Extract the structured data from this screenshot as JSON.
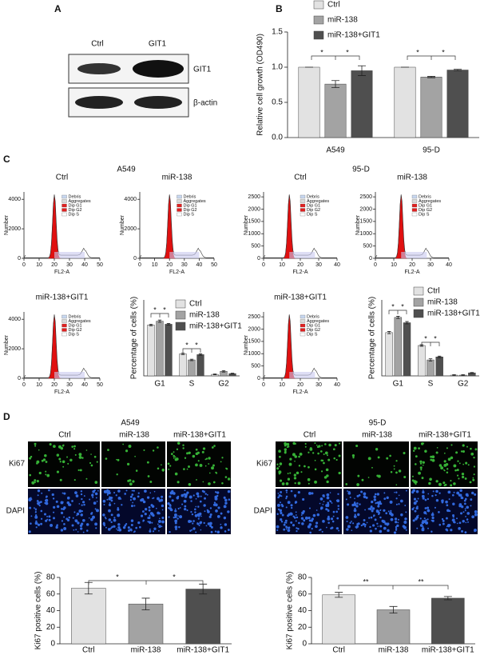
{
  "panels": [
    "A",
    "B",
    "C",
    "D"
  ],
  "blot": {
    "columns": [
      "Ctrl",
      "GIT1"
    ],
    "rows": [
      "GIT1",
      "β-actin"
    ]
  },
  "flow": [
    {
      "title": "A549",
      "plots": [
        "Ctrl",
        "miR-138",
        "miR-138+GIT1"
      ],
      "xlabel": "FL2-A",
      "ylabel": "Number",
      "xlim": [
        0,
        50
      ],
      "xticks": [
        0,
        10,
        20,
        30,
        40,
        50
      ],
      "ylim": [
        0,
        4500
      ],
      "yticks": [
        0,
        2000,
        4000
      ],
      "legend": [
        "Debris",
        "Aggregates",
        "Dip G1",
        "Dip G2",
        "Dip S"
      ]
    },
    {
      "title": "95-D",
      "plots": [
        "Ctrl",
        "miR-138",
        "miR-138+GIT1"
      ],
      "xlabel": "FL2-A",
      "ylabel": "Number",
      "xlim": [
        0,
        40
      ],
      "xticks": [
        0,
        10,
        20,
        30,
        40
      ],
      "ylim": [
        0,
        2700
      ],
      "yticks": [
        0,
        500,
        1000,
        1500,
        2000,
        2500
      ],
      "legend": [
        "Debris",
        "Aggregates",
        "Dip G1",
        "Dip G2",
        "Dip S"
      ]
    }
  ],
  "microscopy": [
    {
      "title": "A549",
      "columns": [
        "Ctrl",
        "miR-138",
        "miR-138+GIT1"
      ],
      "rows": [
        "Ki67",
        "DAPI"
      ]
    },
    {
      "title": "95-D",
      "columns": [
        "Ctrl",
        "miR-138",
        "miR-138+GIT1"
      ],
      "rows": [
        "Ki67",
        "DAPI"
      ]
    }
  ],
  "chart_data": [
    {
      "type": "bar",
      "ylabel": "Relative cell growth (OD490)",
      "categories": [
        "A549",
        "95-D"
      ],
      "series": [
        {
          "name": "Ctrl",
          "color": "#e2e2e2",
          "values": [
            1.0,
            1.0
          ],
          "errors": [
            0,
            0
          ]
        },
        {
          "name": "miR-138",
          "color": "#a3a3a3",
          "values": [
            0.76,
            0.86
          ],
          "errors": [
            0.05,
            0.01
          ]
        },
        {
          "name": "miR-138+GIT1",
          "color": "#4f4f4f",
          "values": [
            0.95,
            0.96
          ],
          "errors": [
            0.07,
            0.01
          ]
        }
      ],
      "ylim": [
        0,
        1.5
      ],
      "yticks": [
        {
          "value": 0,
          "label": "0.0"
        },
        {
          "value": 0.5,
          "label": "0.5"
        },
        {
          "value": 1,
          "label": "1.0"
        },
        {
          "value": 1.5,
          "label": "1.5"
        }
      ],
      "annotations": [
        "*",
        "*",
        "*",
        "*"
      ]
    },
    {
      "type": "bar",
      "ylabel": "Percentage of cells (%)",
      "categories": [
        "G1",
        "S",
        "G2"
      ],
      "series": [
        {
          "name": "Ctrl",
          "color": "#e2e2e2",
          "values": [
            67,
            29,
            2
          ],
          "errors": [
            1,
            1,
            0.5
          ]
        },
        {
          "name": "miR-138",
          "color": "#a3a3a3",
          "values": [
            72,
            21,
            6
          ],
          "errors": [
            1.5,
            1,
            1
          ]
        },
        {
          "name": "miR-138+GIT1",
          "color": "#4f4f4f",
          "values": [
            68,
            28,
            3
          ],
          "errors": [
            1,
            1,
            0.5
          ]
        }
      ],
      "ylim": [
        0,
        100
      ],
      "annotations": [
        "*",
        "*",
        "*",
        "*"
      ]
    },
    {
      "type": "bar",
      "ylabel": "Percentage of cells (%)",
      "categories": [
        "G1",
        "S",
        "G2"
      ],
      "series": [
        {
          "name": "Ctrl",
          "color": "#e2e2e2",
          "values": [
            57,
            40,
            1
          ],
          "errors": [
            1.5,
            1,
            0.5
          ]
        },
        {
          "name": "miR-138",
          "color": "#a3a3a3",
          "values": [
            77,
            21,
            1
          ],
          "errors": [
            1.5,
            1.5,
            0.5
          ]
        },
        {
          "name": "miR-138+GIT1",
          "color": "#4f4f4f",
          "values": [
            70,
            25,
            4
          ],
          "errors": [
            1.5,
            1,
            0.5
          ]
        }
      ],
      "ylim": [
        0,
        100
      ],
      "annotations": [
        "*",
        "*",
        "*",
        "*"
      ]
    },
    {
      "type": "bar",
      "ylabel": "Ki67 positive cells (%)",
      "categories": [
        "Ctrl",
        "miR-138",
        "miR-138+GIT1"
      ],
      "values": [
        67,
        48,
        66
      ],
      "errors": [
        7,
        7,
        6
      ],
      "colors": [
        "#e2e2e2",
        "#a3a3a3",
        "#4f4f4f"
      ],
      "ylim": [
        0,
        80
      ],
      "yticks": [
        0,
        20,
        40,
        60,
        80
      ],
      "annotations": [
        "*",
        "*"
      ]
    },
    {
      "type": "bar",
      "ylabel": "Ki67 positive cells (%)",
      "categories": [
        "Ctrl",
        "miR-138",
        "miR-138+GIT1"
      ],
      "values": [
        59,
        41,
        55
      ],
      "errors": [
        3,
        4,
        2
      ],
      "colors": [
        "#e2e2e2",
        "#a3a3a3",
        "#4f4f4f"
      ],
      "ylim": [
        0,
        80
      ],
      "yticks": [
        0,
        20,
        40,
        60,
        80
      ],
      "annotations": [
        "**",
        "**"
      ]
    }
  ]
}
